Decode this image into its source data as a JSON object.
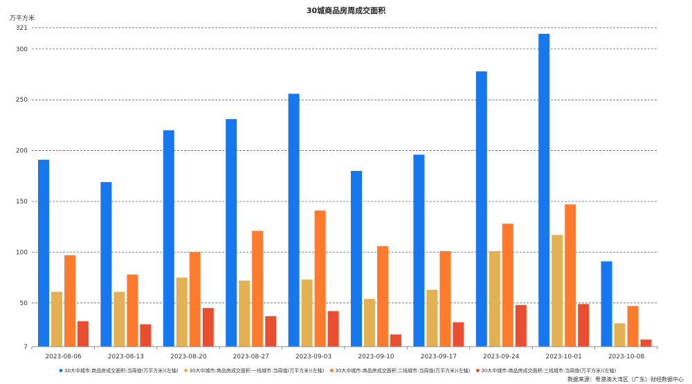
{
  "chart_data": {
    "type": "bar",
    "title": "30城商品房周成交面积",
    "ylabel": "万平方米",
    "ylim": [
      7,
      321
    ],
    "yticks": [
      7,
      50,
      100,
      150,
      200,
      250,
      300,
      321
    ],
    "grid": true,
    "legend_position": "bottom",
    "categories": [
      "2023-08-06",
      "2023-08-13",
      "2023-08-20",
      "2023-08-27",
      "2023-09-03",
      "2023-09-10",
      "2023-09-17",
      "2023-09-24",
      "2023-10-01",
      "2023-10-08"
    ],
    "series": [
      {
        "name": "30大中城市:商品房成交面积:当周值(万平方米)(左轴)",
        "color": "#1677ee",
        "values": [
          191,
          169,
          220,
          231,
          256,
          180,
          196,
          278,
          315,
          91
        ]
      },
      {
        "name": "30大中城市:商品房成交面积:一线城市:当周值(万平方米)(左轴)",
        "color": "#e3b053",
        "values": [
          61,
          61,
          75,
          72,
          73,
          54,
          63,
          101,
          117,
          30
        ]
      },
      {
        "name": "30大中城市:商品房成交面积:二线城市:当周值(万平方米)(左轴)",
        "color": "#fe7a2c",
        "values": [
          97,
          78,
          100,
          121,
          141,
          106,
          101,
          128,
          147,
          47
        ]
      },
      {
        "name": "30大中城市:商品房成交面积:三线城市:当周值(万平方米)(左轴)",
        "color": "#ea4e30",
        "values": [
          32,
          29,
          45,
          37,
          42,
          19,
          31,
          48,
          49,
          14
        ]
      }
    ],
    "source": "数据来源：粤港澳大湾区（广东）财经数据中心"
  }
}
